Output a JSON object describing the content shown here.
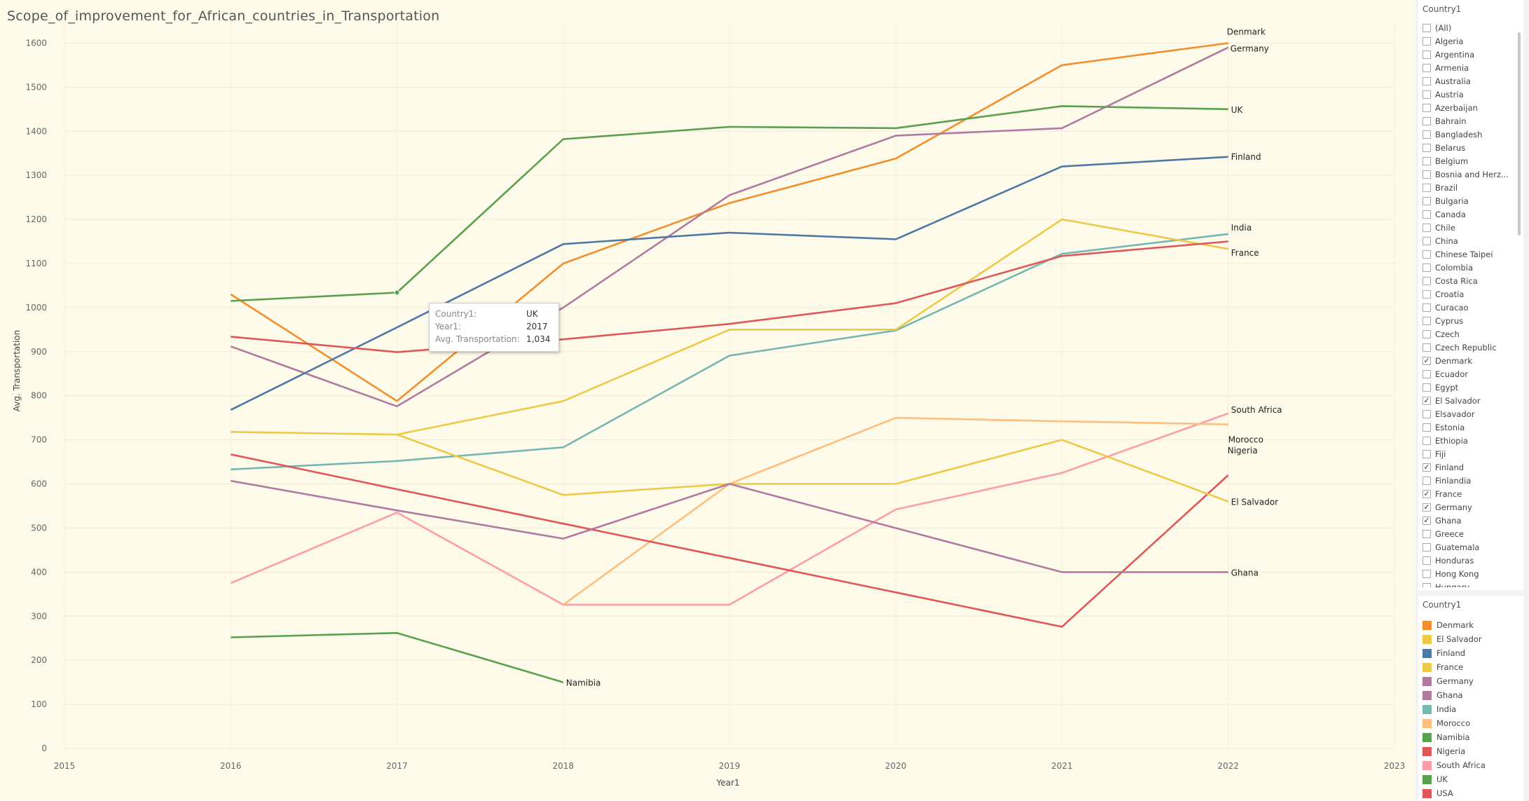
{
  "title": "Scope_of_improvement_for_African_countries_in_Transportation",
  "chart_data": {
    "type": "line",
    "xlabel": "Year1",
    "ylabel": "Avg. Transportation",
    "xlim": [
      2015,
      2023
    ],
    "ylim": [
      0,
      1650
    ],
    "x_ticks": [
      "2015",
      "2016",
      "2017",
      "2018",
      "2019",
      "2020",
      "2021",
      "2022",
      "2023"
    ],
    "y_ticks": [
      "0",
      "100",
      "200",
      "300",
      "400",
      "500",
      "600",
      "700",
      "800",
      "900",
      "1000",
      "1100",
      "1200",
      "1300",
      "1400",
      "1500",
      "1600"
    ],
    "grid": true,
    "series": [
      {
        "name": "Denmark",
        "label": "Denmark",
        "color": "#f28e2b",
        "x": [
          2016,
          2017,
          2018,
          2019,
          2020,
          2021,
          2022
        ],
        "y": [
          1030,
          788,
          1100,
          1237,
          1338,
          1550,
          1600
        ]
      },
      {
        "name": "Germany",
        "label": "Germany",
        "color": "#b07aa1",
        "x": [
          2016,
          2017,
          2018,
          2019,
          2020,
          2021,
          2022
        ],
        "y": [
          912,
          776,
          1000,
          1255,
          1390,
          1407,
          1590
        ]
      },
      {
        "name": "UK",
        "label": "UK",
        "color": "#59a14f",
        "x": [
          2016,
          2017,
          2018,
          2019,
          2020,
          2021,
          2022
        ],
        "y": [
          1015,
          1034,
          1382,
          1410,
          1407,
          1457,
          1450
        ]
      },
      {
        "name": "Finland",
        "label": "Finland",
        "color": "#4e79a7",
        "x": [
          2016,
          2017,
          2018,
          2019,
          2020,
          2021,
          2022
        ],
        "y": [
          768,
          955,
          1144,
          1170,
          1155,
          1320,
          1342
        ]
      },
      {
        "name": "India",
        "label": "India",
        "color": "#76b7b2",
        "x": [
          2016,
          2017,
          2018,
          2019,
          2020,
          2021,
          2022
        ],
        "y": [
          633,
          652,
          683,
          891,
          948,
          1122,
          1167
        ]
      },
      {
        "name": "France",
        "label": "France",
        "color": "#edc948",
        "x": [
          2016,
          2017,
          2018,
          2019,
          2020,
          2021,
          2022
        ],
        "y": [
          718,
          712,
          788,
          950,
          950,
          1200,
          1133
        ]
      },
      {
        "name": "USA",
        "label": "",
        "color": "#e15759",
        "x": [
          2016,
          2017,
          2018,
          2019,
          2020,
          2021,
          2022
        ],
        "y": [
          934,
          899,
          928,
          963,
          1010,
          1117,
          1150
        ]
      },
      {
        "name": "South Africa",
        "label": "South Africa",
        "color": "#ff9da7",
        "x": [
          2016,
          2017,
          2018,
          2019,
          2020,
          2021,
          2022
        ],
        "y": [
          375,
          535,
          326,
          326,
          542,
          625,
          760
        ]
      },
      {
        "name": "Morocco",
        "label": "Morocco",
        "color": "#ffbe7d",
        "x": [
          2018,
          2019,
          2020,
          2021,
          2022
        ],
        "y": [
          326,
          600,
          750,
          742,
          735
        ]
      },
      {
        "name": "Nigeria",
        "label": "Nigeria",
        "color": "#e15759",
        "x": [
          2016,
          2017,
          2018,
          2019,
          2020,
          2021,
          2022
        ],
        "y": [
          667,
          588,
          510,
          432,
          354,
          276,
          620
        ]
      },
      {
        "name": "El Salvador",
        "label": "El Salvador",
        "color": "#edc948",
        "x": [
          2017,
          2018,
          2019,
          2020,
          2021,
          2022
        ],
        "y": [
          712,
          575,
          600,
          600,
          700,
          560
        ]
      },
      {
        "name": "Ghana",
        "label": "Ghana",
        "color": "#b07aa1",
        "x": [
          2016,
          2017,
          2018,
          2019,
          2020,
          2021,
          2022
        ],
        "y": [
          607,
          540,
          476,
          600,
          500,
          400,
          400
        ]
      },
      {
        "name": "Namibia",
        "label": "Namibia",
        "color": "#59a14f",
        "x": [
          2016,
          2017,
          2018
        ],
        "y": [
          252,
          262,
          150
        ]
      }
    ],
    "highlight_point": {
      "series": "UK",
      "x": 2017,
      "y": 1034
    }
  },
  "tooltip": {
    "rows": [
      {
        "key": "Country1:",
        "value": "UK"
      },
      {
        "key": "Year1:",
        "value": "2017"
      },
      {
        "key": "Avg. Transportation:",
        "value": "1,034"
      }
    ]
  },
  "filter": {
    "title": "Country1",
    "items": [
      {
        "label": "(All)",
        "checked": false
      },
      {
        "label": "Algeria",
        "checked": false
      },
      {
        "label": "Argentina",
        "checked": false
      },
      {
        "label": "Armenia",
        "checked": false
      },
      {
        "label": "Australia",
        "checked": false
      },
      {
        "label": "Austria",
        "checked": false
      },
      {
        "label": "Azerbaijan",
        "checked": false
      },
      {
        "label": "Bahrain",
        "checked": false
      },
      {
        "label": "Bangladesh",
        "checked": false
      },
      {
        "label": "Belarus",
        "checked": false
      },
      {
        "label": "Belgium",
        "checked": false
      },
      {
        "label": "Bosnia and Herz...",
        "checked": false
      },
      {
        "label": "Brazil",
        "checked": false
      },
      {
        "label": "Bulgaria",
        "checked": false
      },
      {
        "label": "Canada",
        "checked": false
      },
      {
        "label": "Chile",
        "checked": false
      },
      {
        "label": "China",
        "checked": false
      },
      {
        "label": "Chinese Taipei",
        "checked": false
      },
      {
        "label": "Colombia",
        "checked": false
      },
      {
        "label": "Costa Rica",
        "checked": false
      },
      {
        "label": "Croatia",
        "checked": false
      },
      {
        "label": "Curacao",
        "checked": false
      },
      {
        "label": "Cyprus",
        "checked": false
      },
      {
        "label": "Czech",
        "checked": false
      },
      {
        "label": "Czech Republic",
        "checked": false
      },
      {
        "label": "Denmark",
        "checked": true
      },
      {
        "label": "Ecuador",
        "checked": false
      },
      {
        "label": "Egypt",
        "checked": false
      },
      {
        "label": "El Salvador",
        "checked": true
      },
      {
        "label": "Elsavador",
        "checked": false
      },
      {
        "label": "Estonia",
        "checked": false
      },
      {
        "label": "Ethiopia",
        "checked": false
      },
      {
        "label": "Fiji",
        "checked": false
      },
      {
        "label": "Finland",
        "checked": true
      },
      {
        "label": "Finlandia",
        "checked": false
      },
      {
        "label": "France",
        "checked": true
      },
      {
        "label": "Germany",
        "checked": true
      },
      {
        "label": "Ghana",
        "checked": true
      },
      {
        "label": "Greece",
        "checked": false
      },
      {
        "label": "Guatemala",
        "checked": false
      },
      {
        "label": "Honduras",
        "checked": false
      },
      {
        "label": "Hong Kong",
        "checked": false
      },
      {
        "label": "Hungary",
        "checked": false
      }
    ]
  },
  "legend": {
    "title": "Country1",
    "items": [
      {
        "label": "Denmark",
        "color": "#f28e2b"
      },
      {
        "label": "El Salvador",
        "color": "#edc948"
      },
      {
        "label": "Finland",
        "color": "#4e79a7"
      },
      {
        "label": "France",
        "color": "#edc948"
      },
      {
        "label": "Germany",
        "color": "#b07aa1"
      },
      {
        "label": "Ghana",
        "color": "#b07aa1"
      },
      {
        "label": "India",
        "color": "#76b7b2"
      },
      {
        "label": "Morocco",
        "color": "#ffbe7d"
      },
      {
        "label": "Namibia",
        "color": "#59a14f"
      },
      {
        "label": "Nigeria",
        "color": "#e15759"
      },
      {
        "label": "South Africa",
        "color": "#ff9da7"
      },
      {
        "label": "UK",
        "color": "#59a14f"
      },
      {
        "label": "USA",
        "color": "#e15759"
      }
    ]
  }
}
